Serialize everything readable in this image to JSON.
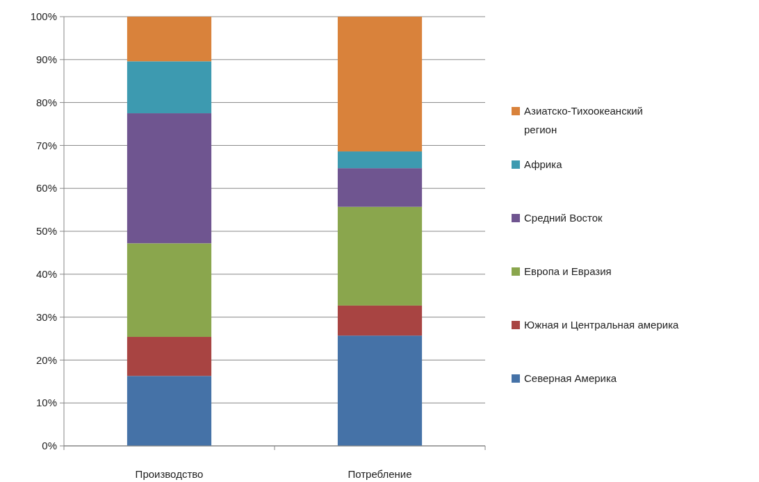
{
  "chart_data": {
    "type": "bar",
    "stacked": true,
    "categories": [
      "Производство",
      "Потребление"
    ],
    "series": [
      {
        "name": "Северная Америка",
        "color": "#4572a7",
        "values": [
          16.3,
          25.7
        ]
      },
      {
        "name": "Южная и Центральная америка",
        "color": "#a84442",
        "values": [
          9.1,
          7.0
        ]
      },
      {
        "name": "Европа и Евразия",
        "color": "#8aa64d",
        "values": [
          21.8,
          23.0
        ]
      },
      {
        "name": "Средний Восток",
        "color": "#6f5590",
        "values": [
          30.3,
          9.0
        ]
      },
      {
        "name": "Африка",
        "color": "#3d9ab0",
        "values": [
          12.1,
          3.9
        ]
      },
      {
        "name": "Азиатско-Тихоокеанский регион",
        "color": "#d9823b",
        "values": [
          10.4,
          31.4
        ]
      }
    ],
    "ylim": [
      0,
      100
    ],
    "yticks": [
      {
        "value": 0,
        "label": "0%"
      },
      {
        "value": 10,
        "label": "10%"
      },
      {
        "value": 20,
        "label": "20%"
      },
      {
        "value": 30,
        "label": "30%"
      },
      {
        "value": 40,
        "label": "40%"
      },
      {
        "value": 50,
        "label": "50%"
      },
      {
        "value": 60,
        "label": "60%"
      },
      {
        "value": 70,
        "label": "70%"
      },
      {
        "value": 80,
        "label": "80%"
      },
      {
        "value": 90,
        "label": "90%"
      },
      {
        "value": 100,
        "label": "100%"
      }
    ],
    "grid": "y",
    "legend": "right"
  }
}
